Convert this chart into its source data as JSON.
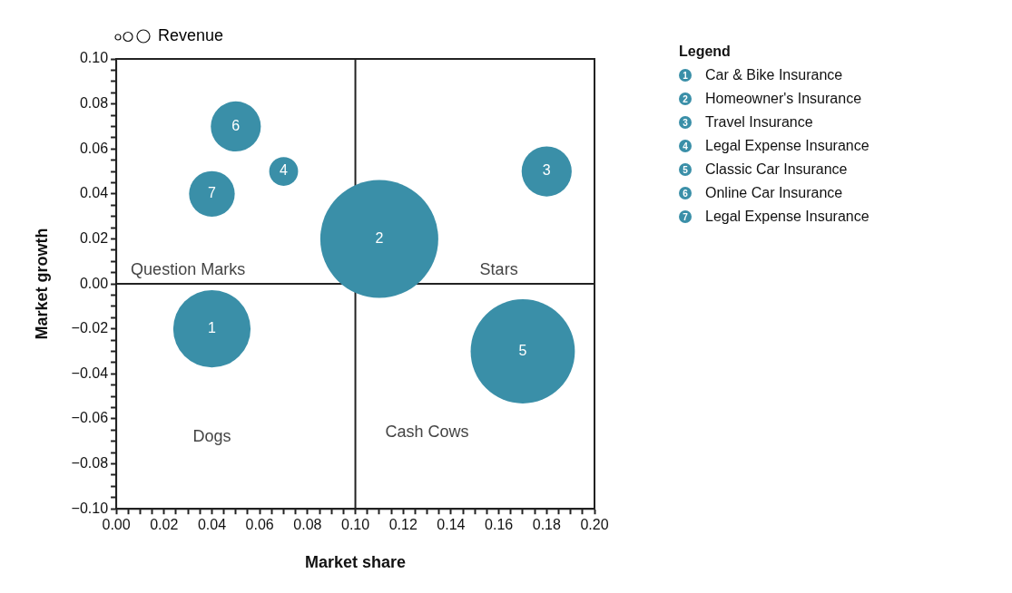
{
  "chart_data": {
    "type": "bubble",
    "xlabel": "Market share",
    "ylabel": "Market growth",
    "legend_title": "Legend",
    "legend": "top right",
    "grid": false,
    "annotations": [
      "Revenue",
      "Question Marks",
      "Stars",
      "Dogs",
      "Cash Cows",
      {
        "text": "1",
        "x": 0.04,
        "y": -0.02
      },
      {
        "text": "2",
        "x": 0.11,
        "y": 0.02
      },
      {
        "text": "3",
        "x": 0.18,
        "y": 0.05
      },
      {
        "text": "4",
        "x": 0.07,
        "y": 0.05
      },
      {
        "text": "5",
        "x": 0.17,
        "y": -0.03
      },
      {
        "text": "6",
        "x": 0.05,
        "y": 0.07
      },
      {
        "text": "7",
        "x": 0.04,
        "y": 0.04
      }
    ],
    "xlim": [
      0,
      0.2
    ],
    "ylim": [
      -0.1,
      0.1
    ],
    "xticks": [
      {
        "value": 0,
        "label": "0.00"
      },
      {
        "value": 0.005,
        "label": null
      },
      {
        "value": 0.01,
        "label": null
      },
      {
        "value": 0.015,
        "label": null
      },
      {
        "value": 0.02,
        "label": "0.02"
      },
      {
        "value": 0.025,
        "label": null
      },
      {
        "value": 0.03,
        "label": null
      },
      {
        "value": 0.035,
        "label": null
      },
      {
        "value": 0.04,
        "label": "0.04"
      },
      {
        "value": 0.045,
        "label": null
      },
      {
        "value": 0.05,
        "label": null
      },
      {
        "value": 0.055,
        "label": null
      },
      {
        "value": 0.06,
        "label": "0.06"
      },
      {
        "value": 0.065,
        "label": null
      },
      {
        "value": 0.07,
        "label": null
      },
      {
        "value": 0.075,
        "label": null
      },
      {
        "value": 0.08,
        "label": "0.08"
      },
      {
        "value": 0.085,
        "label": null
      },
      {
        "value": 0.09,
        "label": null
      },
      {
        "value": 0.095,
        "label": null
      },
      {
        "value": 0.1,
        "label": "0.10"
      },
      {
        "value": 0.105,
        "label": null
      },
      {
        "value": 0.11,
        "label": null
      },
      {
        "value": 0.115,
        "label": null
      },
      {
        "value": 0.12,
        "label": "0.12"
      },
      {
        "value": 0.125,
        "label": null
      },
      {
        "value": 0.13,
        "label": null
      },
      {
        "value": 0.135,
        "label": null
      },
      {
        "value": 0.14,
        "label": "0.14"
      },
      {
        "value": 0.145,
        "label": null
      },
      {
        "value": 0.15,
        "label": null
      },
      {
        "value": 0.155,
        "label": null
      },
      {
        "value": 0.16,
        "label": "0.16"
      },
      {
        "value": 0.165,
        "label": null
      },
      {
        "value": 0.17,
        "label": null
      },
      {
        "value": 0.175,
        "label": null
      },
      {
        "value": 0.18,
        "label": "0.18"
      },
      {
        "value": 0.185,
        "label": null
      },
      {
        "value": 0.19,
        "label": null
      },
      {
        "value": 0.195,
        "label": null
      },
      {
        "value": 0.2,
        "label": "0.20"
      }
    ],
    "yticks": [
      {
        "value": -0.1,
        "label": "−0.10"
      },
      {
        "value": -0.095,
        "label": null
      },
      {
        "value": -0.09,
        "label": null
      },
      {
        "value": -0.085,
        "label": null
      },
      {
        "value": -0.08,
        "label": "−0.08"
      },
      {
        "value": -0.075,
        "label": null
      },
      {
        "value": -0.07,
        "label": null
      },
      {
        "value": -0.065,
        "label": null
      },
      {
        "value": -0.06,
        "label": "−0.06"
      },
      {
        "value": -0.055,
        "label": null
      },
      {
        "value": -0.05,
        "label": null
      },
      {
        "value": -0.045,
        "label": null
      },
      {
        "value": -0.04,
        "label": "−0.04"
      },
      {
        "value": -0.035,
        "label": null
      },
      {
        "value": -0.03,
        "label": null
      },
      {
        "value": -0.025,
        "label": null
      },
      {
        "value": -0.02,
        "label": "−0.02"
      },
      {
        "value": -0.015,
        "label": null
      },
      {
        "value": -0.01,
        "label": null
      },
      {
        "value": -0.005,
        "label": null
      },
      {
        "value": 0,
        "label": "0.00"
      },
      {
        "value": 0.005,
        "label": null
      },
      {
        "value": 0.01,
        "label": null
      },
      {
        "value": 0.015,
        "label": null
      },
      {
        "value": 0.02,
        "label": "0.02"
      },
      {
        "value": 0.025,
        "label": null
      },
      {
        "value": 0.03,
        "label": null
      },
      {
        "value": 0.035,
        "label": null
      },
      {
        "value": 0.04,
        "label": "0.04"
      },
      {
        "value": 0.045,
        "label": null
      },
      {
        "value": 0.05,
        "label": null
      },
      {
        "value": 0.055,
        "label": null
      },
      {
        "value": 0.06,
        "label": "0.06"
      },
      {
        "value": 0.065,
        "label": null
      },
      {
        "value": 0.07,
        "label": null
      },
      {
        "value": 0.075,
        "label": null
      },
      {
        "value": 0.08,
        "label": "0.08"
      },
      {
        "value": 0.085,
        "label": null
      },
      {
        "value": 0.09,
        "label": null
      },
      {
        "value": 0.095,
        "label": null
      },
      {
        "value": 0.1,
        "label": "0.10"
      }
    ],
    "ref_lines": [
      {
        "axis": "x",
        "value": 0.1,
        "color": "#222222"
      },
      {
        "axis": "y",
        "value": 0,
        "color": "#222222"
      }
    ],
    "series": [
      {
        "name": "Car & Bike Insurance",
        "color": "#3a8fa8",
        "x": [
          0.04
        ],
        "values": [
          -0.02
        ],
        "sizes": [
          0.43
        ]
      },
      {
        "name": "Homeowner's Insurance",
        "color": "#3a8fa8",
        "x": [
          0.11
        ],
        "values": [
          0.02
        ],
        "sizes": [
          1
        ]
      },
      {
        "name": "Travel Insurance",
        "color": "#3a8fa8",
        "x": [
          0.18
        ],
        "values": [
          0.05
        ],
        "sizes": [
          0.18
        ]
      },
      {
        "name": "Legal Expense Insurance",
        "color": "#3a8fa8",
        "x": [
          0.07
        ],
        "values": [
          0.05
        ],
        "sizes": [
          0.06
        ]
      },
      {
        "name": "Classic Car Insurance",
        "color": "#3a8fa8",
        "x": [
          0.17
        ],
        "values": [
          -0.03
        ],
        "sizes": [
          0.78
        ]
      },
      {
        "name": "Online Car Insurance",
        "color": "#3a8fa8",
        "x": [
          0.05
        ],
        "values": [
          0.07
        ],
        "sizes": [
          0.18
        ]
      },
      {
        "name": "Legal Expense Insurance",
        "color": "#3a8fa8",
        "x": [
          0.04
        ],
        "values": [
          0.04
        ],
        "sizes": [
          0.15
        ]
      }
    ]
  }
}
